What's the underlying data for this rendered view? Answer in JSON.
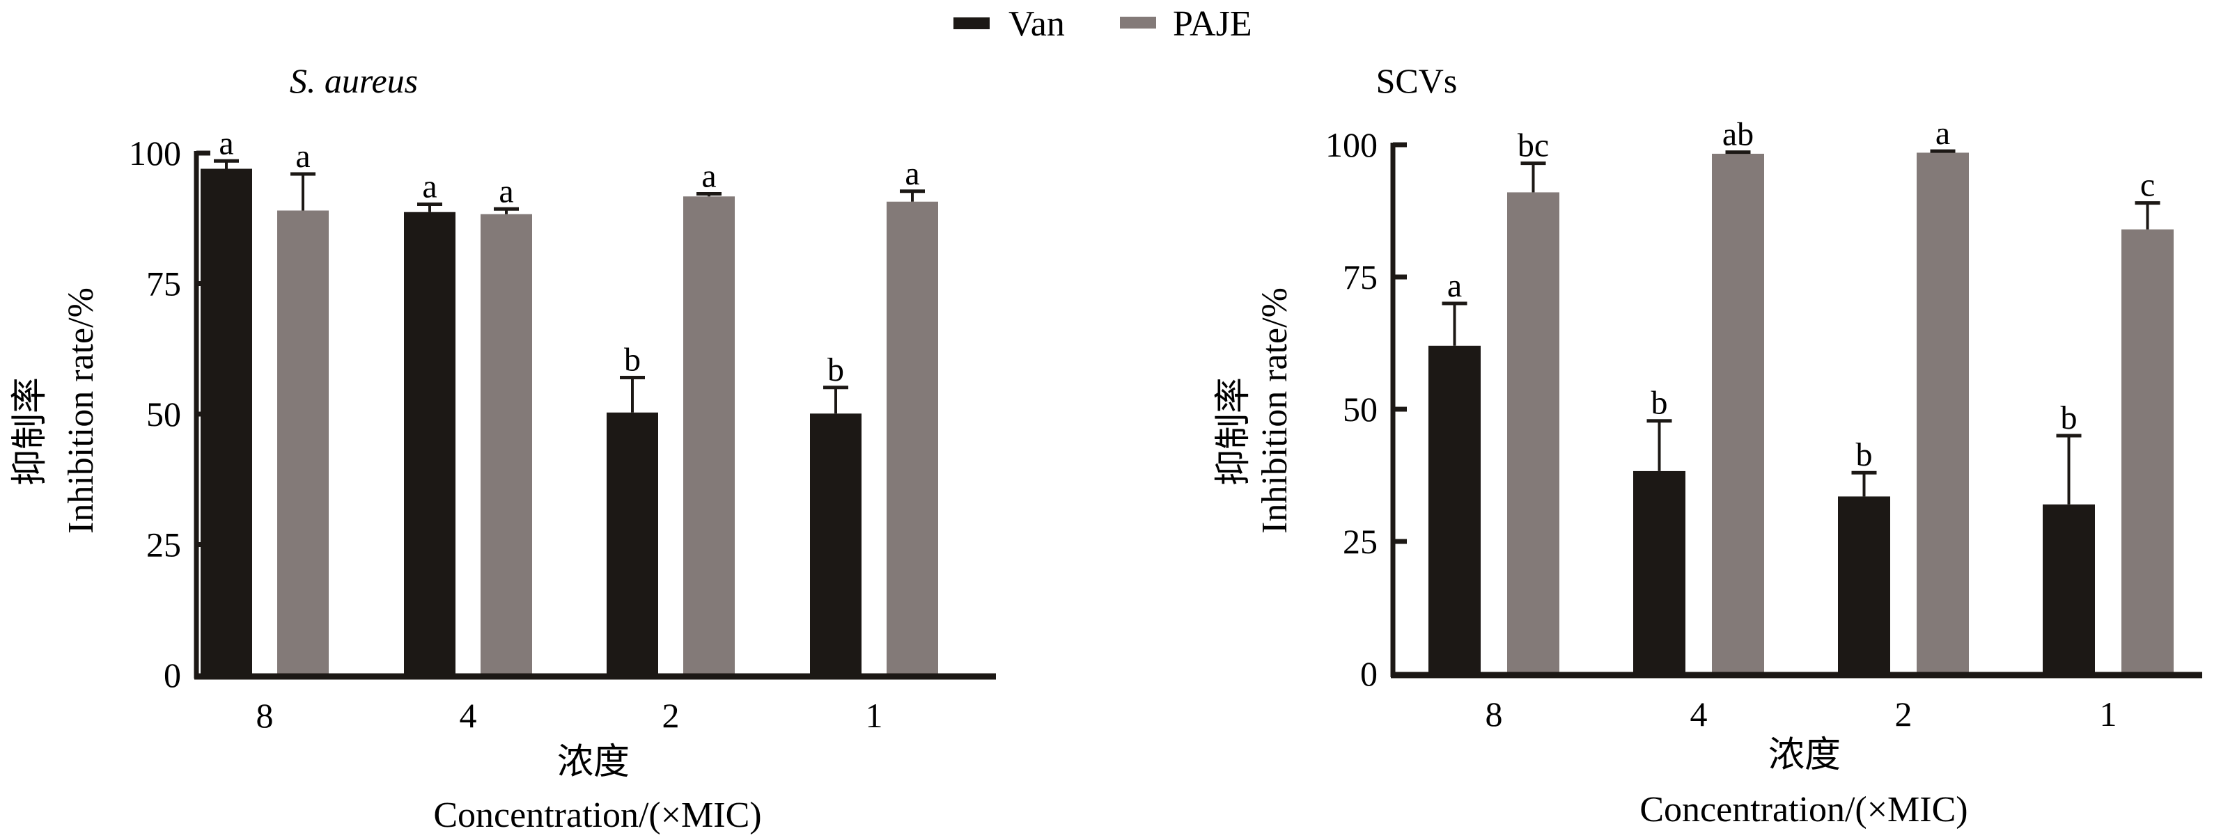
{
  "legend": [
    {
      "name": "Van",
      "color": "#1c1815"
    },
    {
      "name": "PAJE",
      "color": "#837a78"
    }
  ],
  "chart_data": [
    {
      "type": "bar",
      "title": "S. aureus",
      "title_italic": true,
      "categories": [
        "8",
        "4",
        "2",
        "1"
      ],
      "xlabel_cn": "浓度",
      "xlabel": "Concentration/(×MIC)",
      "ylabel_cn": "抑制率",
      "ylabel": "Inhibition rate/%",
      "ylim": [
        0,
        100
      ],
      "yticks": [
        "0",
        "25",
        "50",
        "75",
        "100"
      ],
      "series": [
        {
          "name": "Van",
          "values": [
            97,
            88.7,
            50.3,
            50.1
          ],
          "errors": [
            1.5,
            1.5,
            6.7,
            5
          ],
          "letters": [
            "a",
            "a",
            "b",
            "b"
          ]
        },
        {
          "name": "PAJE",
          "values": [
            89,
            88.3,
            91.7,
            90.7
          ],
          "errors": [
            7,
            1,
            0.5,
            2
          ],
          "letters": [
            "a",
            "a",
            "a",
            "a"
          ]
        }
      ]
    },
    {
      "type": "bar",
      "title": "SCVs",
      "title_italic": false,
      "categories": [
        "8",
        "4",
        "2",
        "1"
      ],
      "xlabel_cn": "浓度",
      "xlabel": "Concentration/(×MIC)",
      "ylabel_cn": "抑制率",
      "ylabel": "Inhibition rate/%",
      "ylim": [
        0,
        100
      ],
      "yticks": [
        "0",
        "25",
        "50",
        "75",
        "100"
      ],
      "series": [
        {
          "name": "Van",
          "values": [
            62,
            38.3,
            33.5,
            32
          ],
          "errors": [
            8,
            9.5,
            4.5,
            13
          ],
          "letters": [
            "a",
            "b",
            "b",
            "b"
          ]
        },
        {
          "name": "PAJE",
          "values": [
            91,
            98.3,
            98.5,
            84
          ],
          "errors": [
            5.5,
            0.3,
            0.3,
            5
          ],
          "letters": [
            "bc",
            "ab",
            "a",
            "c"
          ]
        }
      ]
    }
  ]
}
